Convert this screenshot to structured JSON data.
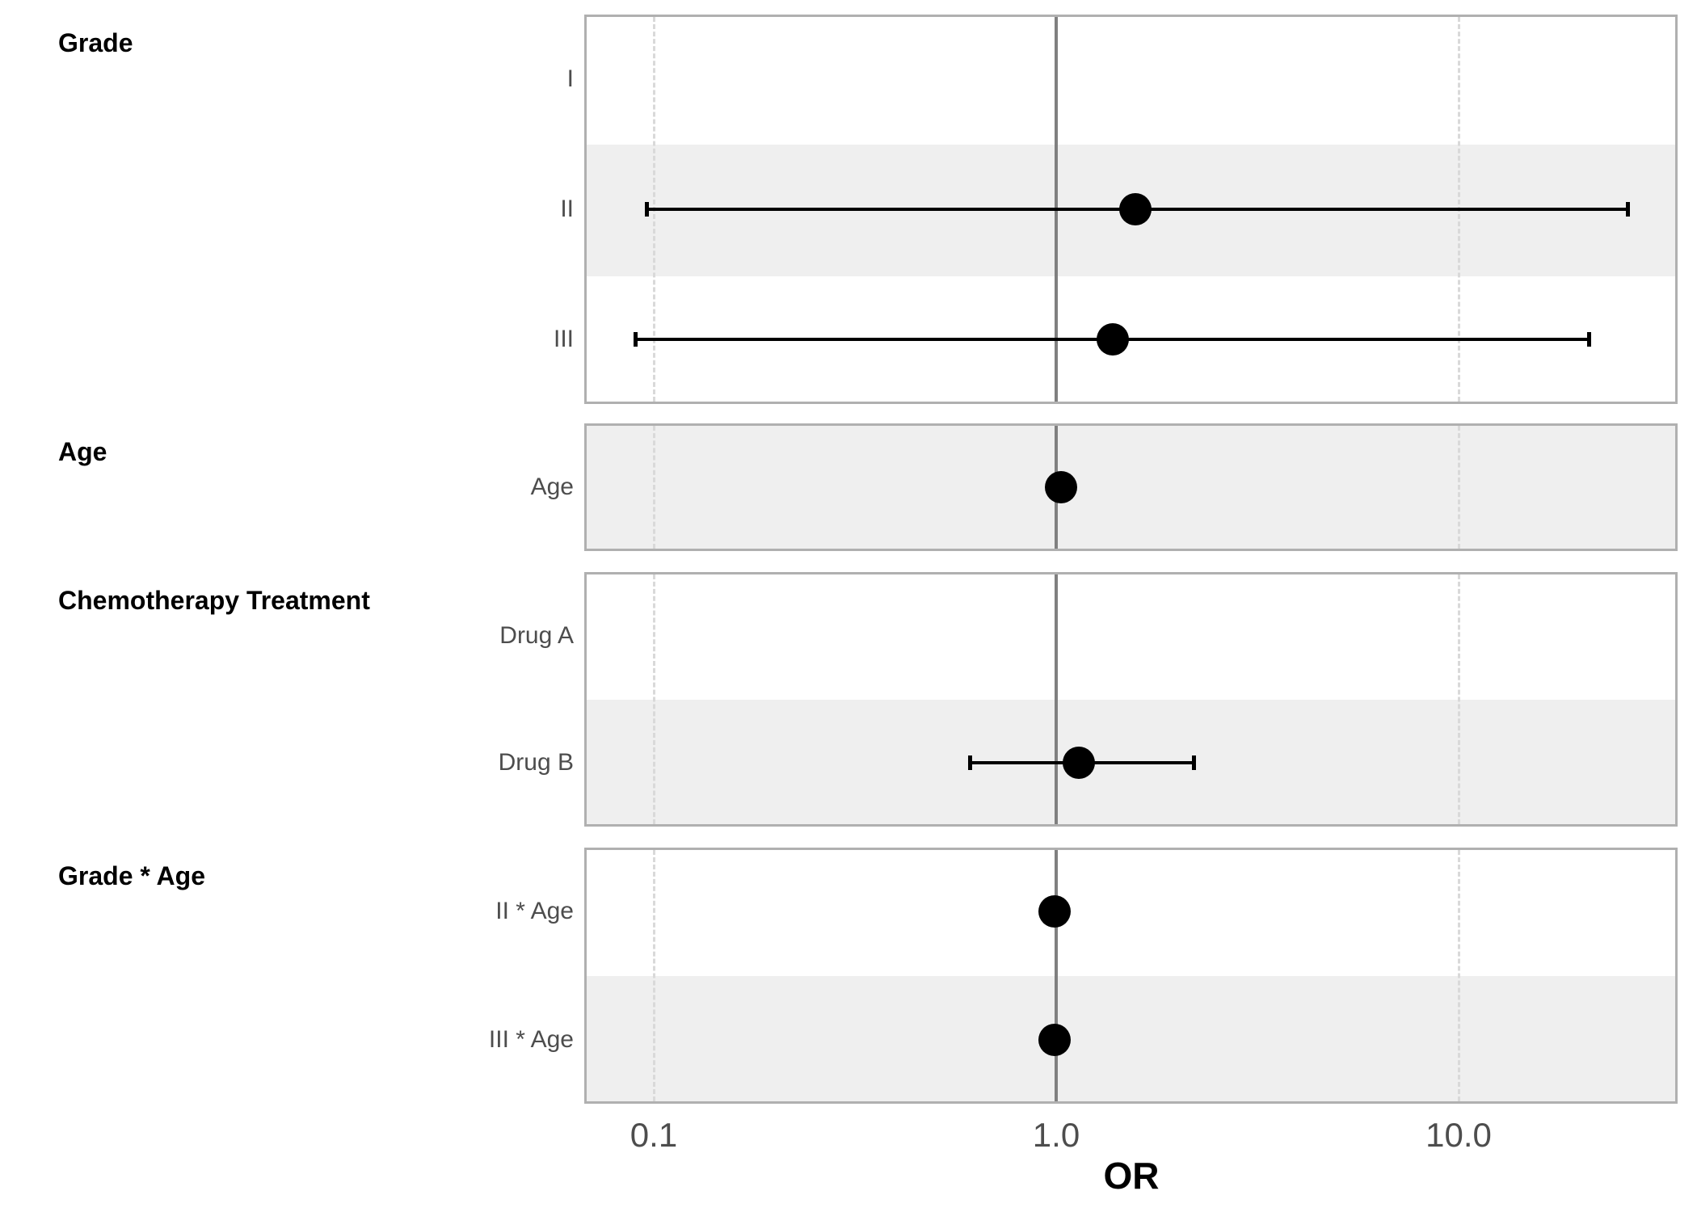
{
  "chart_data": {
    "type": "scatter",
    "subtype": "forest-plot",
    "xlabel": "OR",
    "x_scale": "log10",
    "x_ticks": [
      {
        "label": "0.1",
        "value": 0.1
      },
      {
        "label": "1.0",
        "value": 1.0
      },
      {
        "label": "10.0",
        "value": 10.0
      }
    ],
    "x_range": [
      0.067,
      35
    ],
    "reference_line": 1.0,
    "dashed_gridlines": [
      0.1,
      10.0
    ],
    "legend": "none",
    "groups": [
      {
        "header": "Grade",
        "rows": [
          {
            "label": "I",
            "or": null,
            "lo": null,
            "hi": null
          },
          {
            "label": "II",
            "or": 1.57,
            "lo": 0.096,
            "hi": 26.3
          },
          {
            "label": "III",
            "or": 1.38,
            "lo": 0.09,
            "hi": 21.1
          }
        ]
      },
      {
        "header": "Age",
        "rows": [
          {
            "label": "Age",
            "or": 1.03,
            "lo": null,
            "hi": null
          }
        ]
      },
      {
        "header": "Chemotherapy Treatment",
        "rows": [
          {
            "label": "Drug A",
            "or": null,
            "lo": null,
            "hi": null
          },
          {
            "label": "Drug B",
            "or": 1.14,
            "lo": 0.61,
            "hi": 2.2
          }
        ]
      },
      {
        "header": "Grade * Age",
        "rows": [
          {
            "label": "II * Age",
            "or": 0.99,
            "lo": null,
            "hi": null
          },
          {
            "label": "III * Age",
            "or": 0.99,
            "lo": null,
            "hi": null
          }
        ]
      }
    ],
    "colors": {
      "marker": "#000000",
      "band": "#EFEFEF",
      "panel_border": "#B0B0B0",
      "reference_line": "#808080",
      "gridline": "#D9D9D9",
      "row_label_text": "#4D4D4D",
      "header_text": "#000000",
      "tick_text": "#4D4D4D"
    }
  }
}
